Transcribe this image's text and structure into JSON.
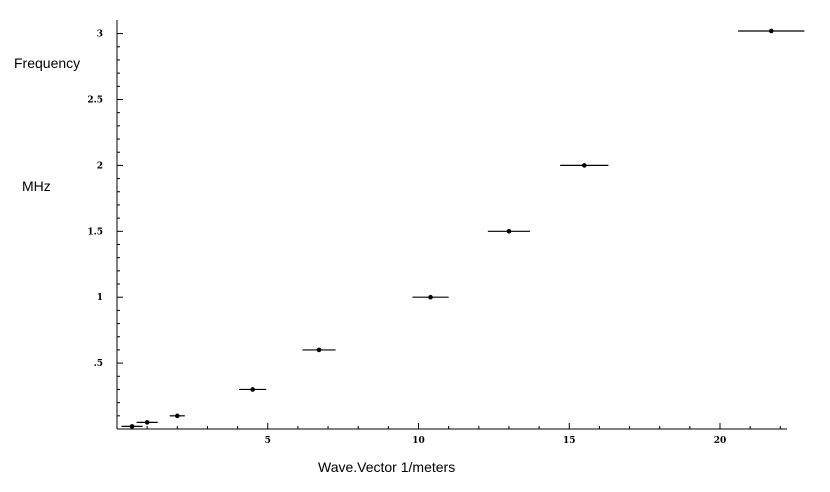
{
  "chart_data": {
    "type": "scatter",
    "title": "",
    "ylabel_line1": "Frequency",
    "ylabel_line2": "MHz",
    "xlabel": "Wave.Vector  1/meters",
    "xlim": [
      0,
      22.5
    ],
    "ylim": [
      0,
      3.05
    ],
    "x_ticks": [
      5,
      10,
      15,
      20
    ],
    "x_tick_labels": [
      "5",
      "10",
      "15",
      "20"
    ],
    "y_ticks": [
      0.5,
      1,
      1.5,
      2,
      2.5,
      3
    ],
    "y_tick_labels": [
      ".5",
      "1",
      "1.5",
      "2",
      "2.5",
      "3"
    ],
    "grid": false,
    "points": [
      {
        "x": 0.5,
        "y": 0.02,
        "xerr": 0.35
      },
      {
        "x": 1.0,
        "y": 0.05,
        "xerr": 0.35
      },
      {
        "x": 2.0,
        "y": 0.1,
        "xerr": 0.25
      },
      {
        "x": 4.5,
        "y": 0.3,
        "xerr": 0.45
      },
      {
        "x": 6.7,
        "y": 0.6,
        "xerr": 0.55
      },
      {
        "x": 10.4,
        "y": 1.0,
        "xerr": 0.6
      },
      {
        "x": 13.0,
        "y": 1.5,
        "xerr": 0.7
      },
      {
        "x": 15.5,
        "y": 2.0,
        "xerr": 0.8
      },
      {
        "x": 21.7,
        "y": 3.02,
        "xerr": 1.1
      }
    ]
  }
}
